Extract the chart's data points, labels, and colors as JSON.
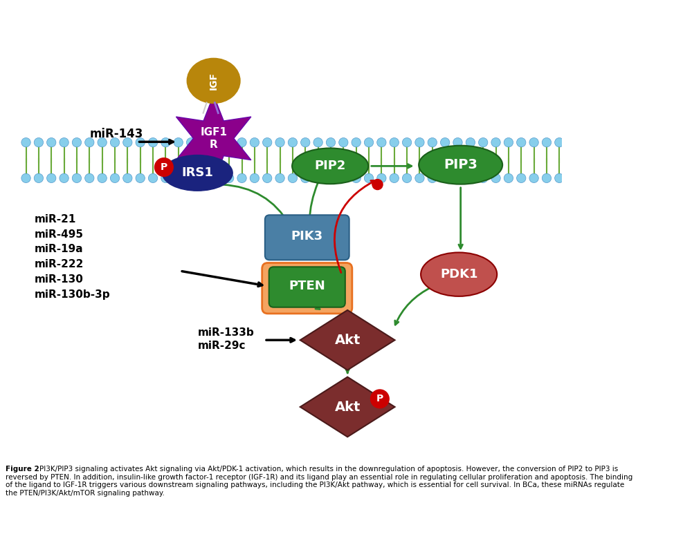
{
  "bg_color": "#ffffff",
  "membrane_color": "#6aaa3a",
  "bubble_color": "#87CEEB",
  "bubble_edge": "#5599cc",
  "igf1r_star_color": "#8B008B",
  "igf1r_ligand_color": "#B8860B",
  "irs1_color": "#1a237e",
  "p_badge_color": "#cc0000",
  "pip2_color": "#2e8b2e",
  "pip3_color": "#2e8b2e",
  "pik3_color": "#4a7fa5",
  "pten_color": "#2e8b2e",
  "pten_glow": "#f4a460",
  "pten_glow_edge": "#e87020",
  "pdk1_color": "#c0504d",
  "akt_color": "#7b2d2d",
  "arrow_green": "#2e8b2e",
  "arrow_red": "#cc0000",
  "caption_lines": [
    "Figure 2 PI3K/PIP3 signaling activates Akt signaling via Akt/PDK-1 activation, which results in the downregulation of apoptosis. However, the conversion of PIP2 to PIP3 is",
    "reversed by PTEN. In addition, insulin-like growth factor-1 receptor (IGF-1R) and its ligand play an essential role in regulating cellular proliferation and apoptosis. The binding",
    "of the ligand to IGF-1R triggers various downstream signaling pathways, including the PI3K/Akt pathway, which is essential for cell survival. In BCa, these miRNAs regulate",
    "the PTEN/PI3K/Akt/mTOR signaling pathway."
  ],
  "mir_group": [
    "miR-21",
    "miR-495",
    "miR-19a",
    "miR-222",
    "miR-130",
    "miR-130b-3p"
  ]
}
